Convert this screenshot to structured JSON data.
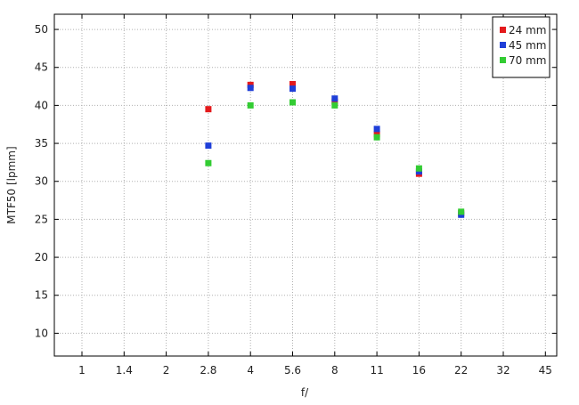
{
  "chart_data": {
    "type": "scatter",
    "xlabel": "f/",
    "ylabel": "MTF50 [lpmm]",
    "x_ticks": [
      "1",
      "1.4",
      "2",
      "2.8",
      "4",
      "5.6",
      "8",
      "11",
      "16",
      "22",
      "32",
      "45"
    ],
    "x_scale": "stops",
    "y_ticks": [
      10,
      15,
      20,
      25,
      30,
      35,
      40,
      45,
      50
    ],
    "ylim": [
      7,
      52
    ],
    "grid": true,
    "legend_position": "top-right",
    "series": [
      {
        "name": "24 mm",
        "color": "#e41a1c",
        "points": [
          {
            "x": "2.8",
            "y": 39.5
          },
          {
            "x": "4",
            "y": 42.7
          },
          {
            "x": "5.6",
            "y": 42.8
          },
          {
            "x": "8",
            "y": 40.5
          },
          {
            "x": "11",
            "y": 36.2
          },
          {
            "x": "16",
            "y": 31.0
          },
          {
            "x": "22",
            "y": 25.8
          }
        ]
      },
      {
        "name": "45 mm",
        "color": "#1f3fd8",
        "points": [
          {
            "x": "2.8",
            "y": 34.7
          },
          {
            "x": "4",
            "y": 42.3
          },
          {
            "x": "5.6",
            "y": 42.2
          },
          {
            "x": "8",
            "y": 40.9
          },
          {
            "x": "11",
            "y": 36.9
          },
          {
            "x": "16",
            "y": 31.3
          },
          {
            "x": "22",
            "y": 25.6
          }
        ]
      },
      {
        "name": "70 mm",
        "color": "#33cc33",
        "points": [
          {
            "x": "2.8",
            "y": 32.4
          },
          {
            "x": "4",
            "y": 40.0
          },
          {
            "x": "5.6",
            "y": 40.4
          },
          {
            "x": "8",
            "y": 40.0
          },
          {
            "x": "11",
            "y": 35.8
          },
          {
            "x": "16",
            "y": 31.7
          },
          {
            "x": "22",
            "y": 26.0
          }
        ]
      }
    ]
  }
}
